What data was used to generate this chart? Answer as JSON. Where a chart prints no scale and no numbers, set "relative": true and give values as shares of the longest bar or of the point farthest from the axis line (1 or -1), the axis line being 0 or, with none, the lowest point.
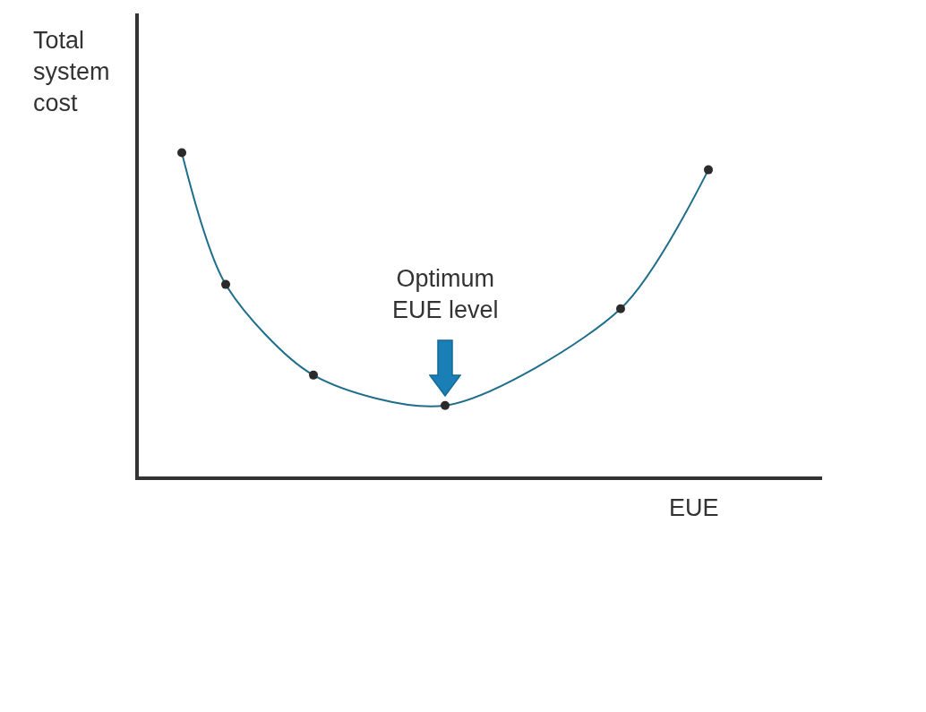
{
  "chart_data": {
    "type": "line",
    "relative": true,
    "ylabel": "Total system cost",
    "xlabel": "EUE",
    "grid": false,
    "marker": "circle",
    "line_style": "solid",
    "annotations": [
      "Optimum EUE level"
    ],
    "categories": [
      null,
      null,
      null,
      null,
      null,
      null,
      null,
      null,
      null,
      null,
      null,
      null,
      null
    ],
    "series": [
      {
        "color": "#1f6e8c",
        "values": [
          1,
          0.593,
          null,
          0.313,
          null,
          null,
          0.219,
          null,
          null,
          null,
          0.518,
          null,
          0.947
        ]
      }
    ]
  }
}
